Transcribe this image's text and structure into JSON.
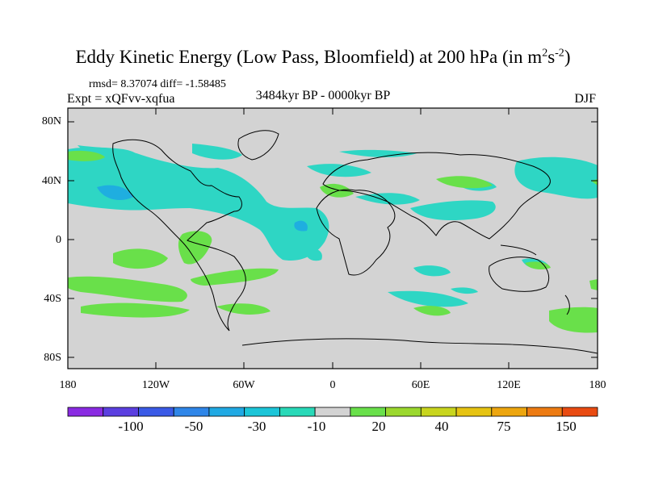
{
  "title": {
    "main": "Eddy Kinetic Energy (Low Pass, Bloomfield) at 200 hPa (in m",
    "sup1": "2",
    "mid": "s",
    "sup2": "-2",
    "close": ")"
  },
  "stats": "rmsd= 8.37074 diff= -1.58485",
  "experiment": "Expt = xQFvv-xqfua",
  "period": "3484kyr BP - 0000kyr BP",
  "season": "DJF",
  "y_ticks": [
    "80N",
    "40N",
    "0",
    "40S",
    "80S"
  ],
  "x_ticks": [
    "180",
    "120W",
    "60W",
    "0",
    "60E",
    "120E",
    "180"
  ],
  "colorbar": {
    "labels": [
      "-100",
      "-50",
      "-30",
      "-10",
      "20",
      "40",
      "75",
      "150"
    ],
    "colors": [
      "#8a2be2",
      "#5b3fe0",
      "#3a5ae6",
      "#2f86e8",
      "#20a9e3",
      "#1cc5d8",
      "#29d9b8",
      "#d3d3d3",
      "#69e04a",
      "#9bd82e",
      "#c8d51e",
      "#e6c312",
      "#eda60f",
      "#ed7b12",
      "#e94b12"
    ]
  },
  "colors": {
    "land_bg": "#d3d3d3",
    "negative": "#2ed6c4",
    "negative_strong": "#1faee0",
    "positive": "#69e04a"
  }
}
